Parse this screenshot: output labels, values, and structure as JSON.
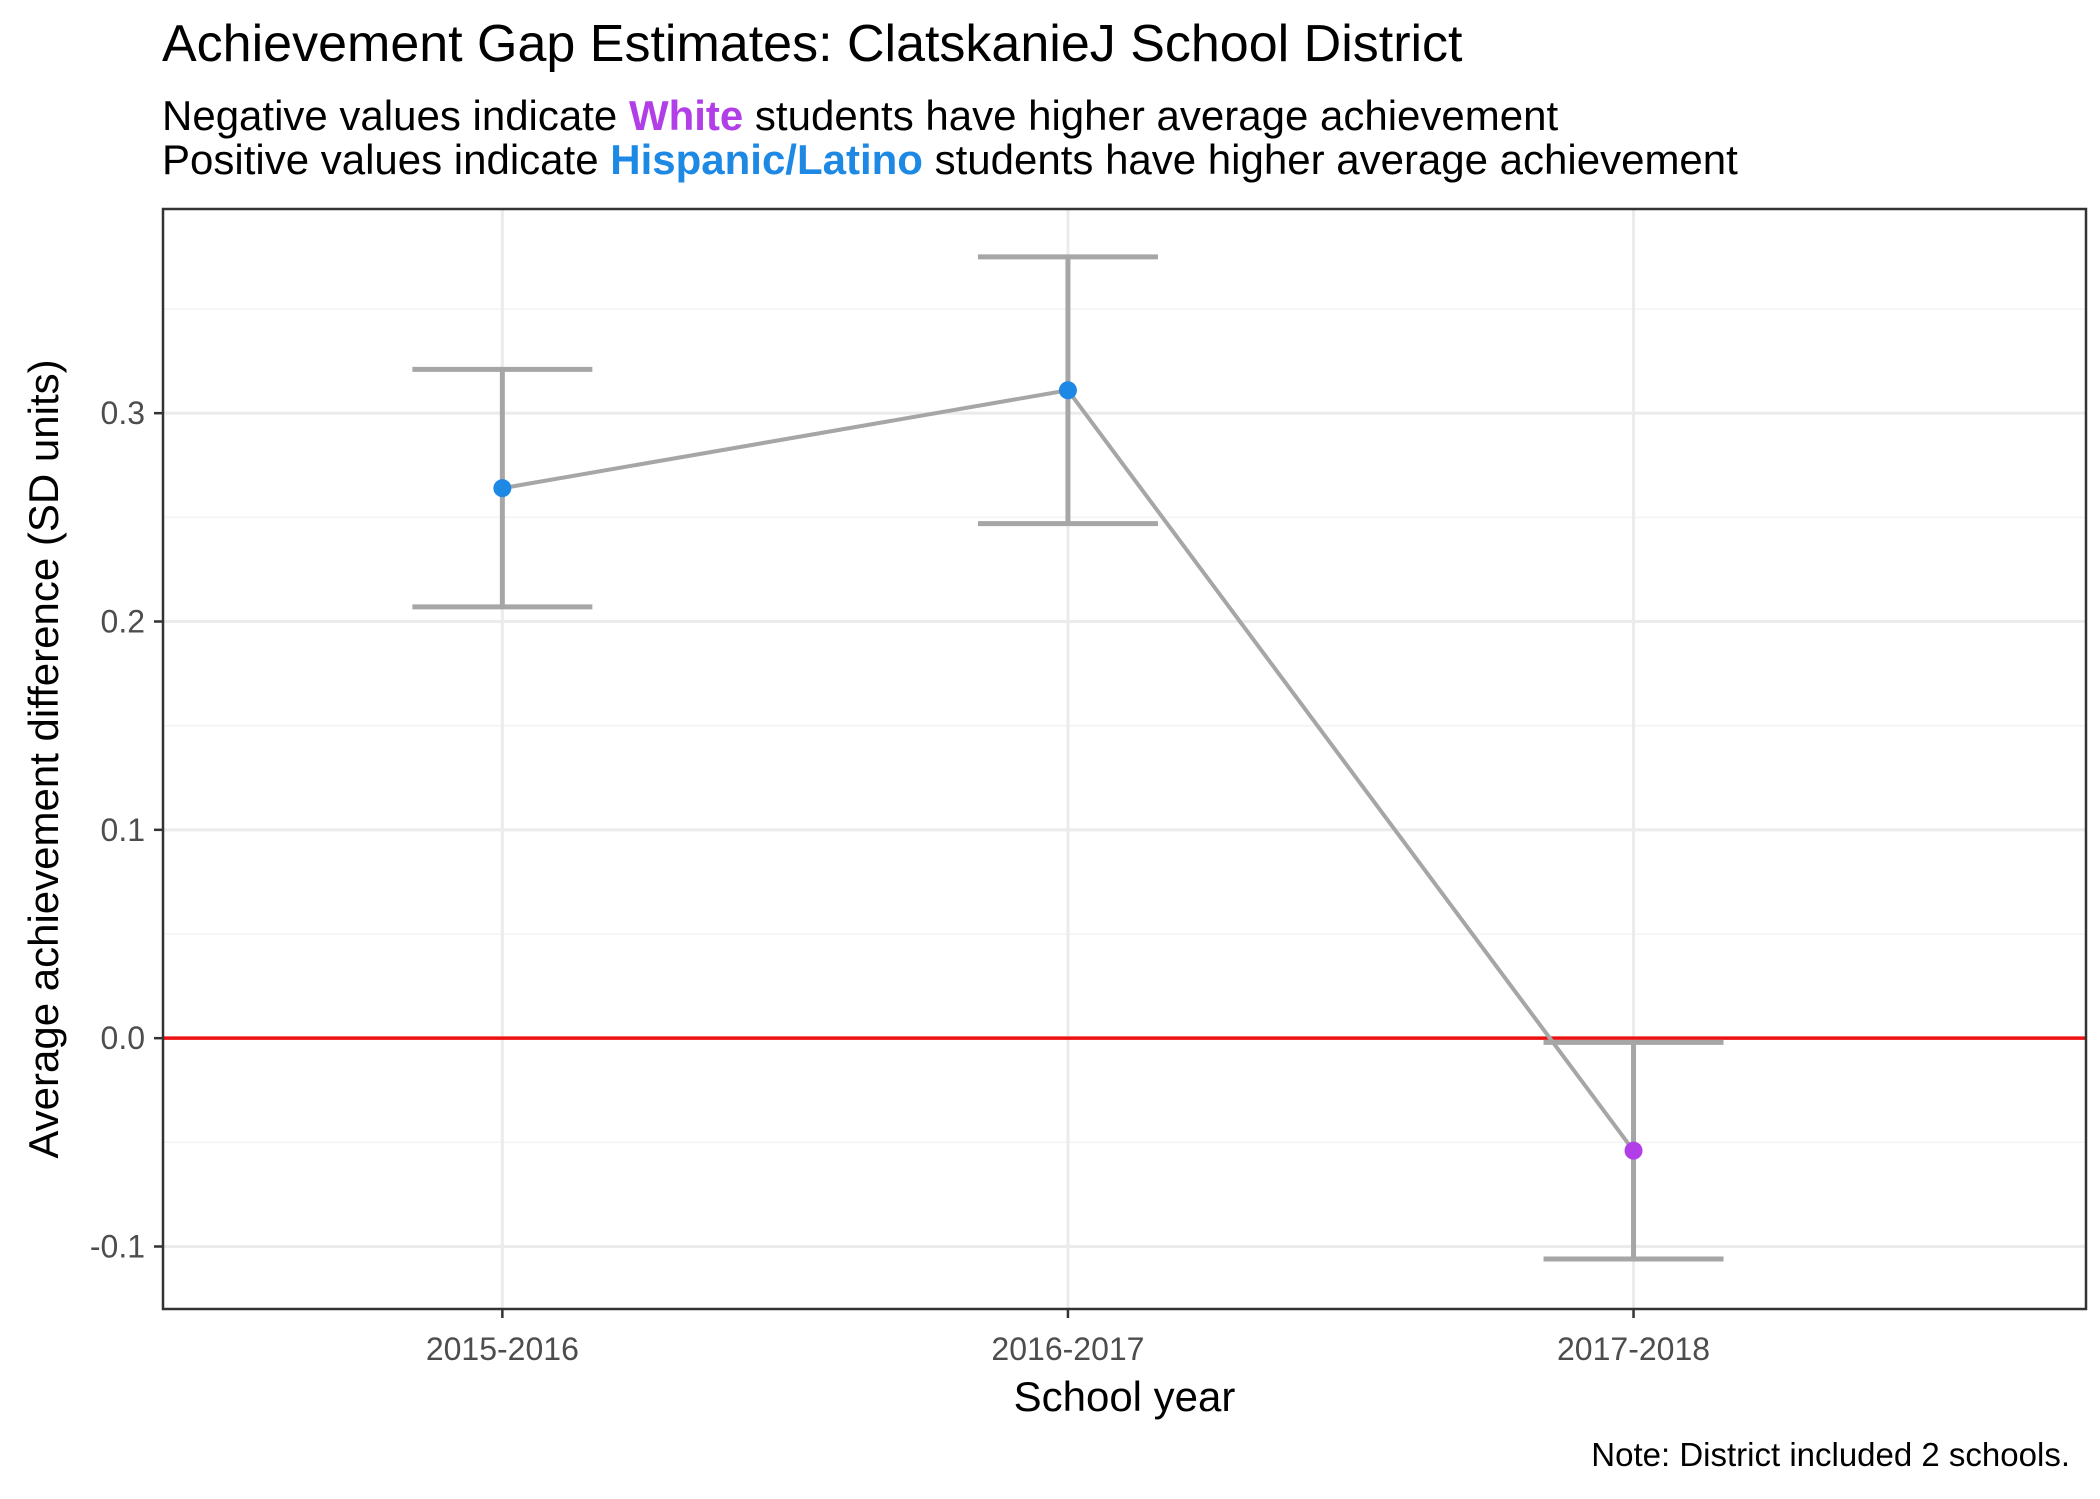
{
  "title": "Achievement Gap Estimates: ClatskanieJ School District",
  "subtitle": {
    "line1": {
      "prefix": "Negative values indicate ",
      "highlight": "White",
      "suffix": " students have higher average achievement"
    },
    "line2": {
      "prefix": "Positive values indicate ",
      "highlight": "Hispanic/Latino",
      "suffix": " students have higher average achievement"
    }
  },
  "caption": "Note: District included 2 schools.",
  "colors": {
    "white_group": "#b23ee8",
    "hispanic_group": "#1e88e5",
    "line": "#a6a6a6",
    "zero_line": "#ee1111"
  },
  "chart_data": {
    "type": "line",
    "title": "Achievement Gap Estimates: ClatskanieJ School District",
    "xlabel": "School year",
    "ylabel": "Average achievement difference (SD units)",
    "categories": [
      "2015-2016",
      "2016-2017",
      "2017-2018"
    ],
    "values": [
      0.264,
      0.311,
      -0.054
    ],
    "ci_lower": [
      0.207,
      0.247,
      -0.106
    ],
    "ci_upper": [
      0.321,
      0.375,
      -0.002
    ],
    "point_groups": [
      "hispanic",
      "hispanic",
      "white"
    ],
    "yticks": [
      -0.1,
      0.0,
      0.1,
      0.2,
      0.3
    ],
    "ytick_labels": [
      "-0.1",
      "0.0",
      "0.1",
      "0.2",
      "0.3"
    ],
    "ylim": [
      -0.13,
      0.398
    ],
    "reference_line": 0,
    "grid": true,
    "legend": "none"
  }
}
